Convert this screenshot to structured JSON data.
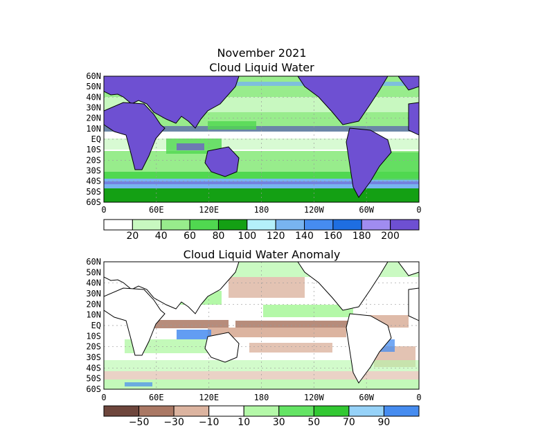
{
  "title": "November 2021",
  "panels": [
    {
      "title": "Cloud Liquid Water",
      "lat_labels": [
        "60N",
        "50N",
        "40N",
        "30N",
        "20N",
        "10N",
        "EQ",
        "10S",
        "20S",
        "30S",
        "40S",
        "50S",
        "60S"
      ],
      "lon_labels": [
        "0",
        "60E",
        "120E",
        "180",
        "120W",
        "60W",
        "0"
      ],
      "colorbar": {
        "colors": [
          "#ffffff",
          "#c8f8c0",
          "#98ec8c",
          "#50d850",
          "#14a014",
          "#b4f0fa",
          "#78b4f0",
          "#468cf0",
          "#1e6ee1",
          "#a08cf0",
          "#6e50d2"
        ],
        "labels": [
          "20",
          "40",
          "60",
          "80",
          "100",
          "120",
          "140",
          "160",
          "180",
          "200"
        ]
      }
    },
    {
      "title": "Cloud Liquid Water Anomaly",
      "lat_labels": [
        "60N",
        "50N",
        "40N",
        "30N",
        "20N",
        "10N",
        "EQ",
        "10S",
        "20S",
        "30S",
        "40S",
        "50S",
        "60S"
      ],
      "lon_labels": [
        "0",
        "60E",
        "120E",
        "180",
        "120W",
        "60W",
        "0"
      ],
      "colorbar": {
        "colors": [
          "#6e463c",
          "#aa7864",
          "#dcb4a0",
          "#ffffff",
          "#b4f8a8",
          "#64e464",
          "#32c832",
          "#96d2f8",
          "#468cf0"
        ],
        "labels": [
          "−50",
          "−30",
          "−10",
          "10",
          "30",
          "50",
          "70",
          "90"
        ]
      }
    }
  ],
  "icons": {
    "land": "continent-outline",
    "grid": "dotted-gridline"
  },
  "colors": {
    "land_fill_top": "#6e50d2",
    "coast": "#000000",
    "grid": "#9a9a9a"
  }
}
